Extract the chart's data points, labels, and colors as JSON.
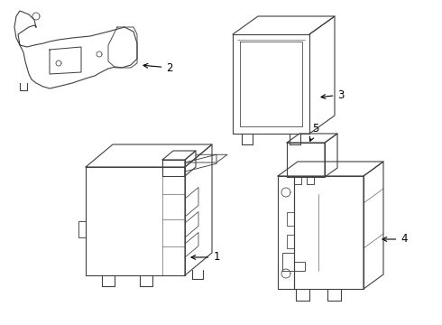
{
  "background_color": "#ffffff",
  "line_color": "#404040",
  "line_width": 0.8,
  "callout_color": "#000000",
  "fig_width": 4.9,
  "fig_height": 3.6,
  "dpi": 100
}
